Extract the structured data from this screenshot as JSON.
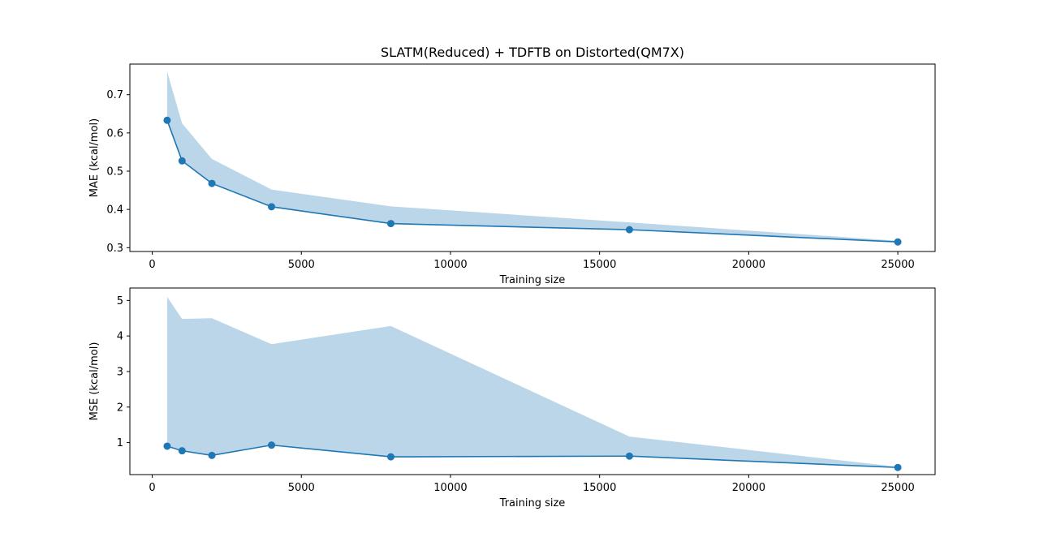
{
  "title": "SLATM(Reduced) + TDFTB on Distorted(QM7X)",
  "colors": {
    "line": "#1f77b4",
    "band": "#1f77b4",
    "axes": "#000000",
    "background": "#ffffff"
  },
  "chart_data": [
    {
      "type": "line",
      "xlabel": "Training size",
      "ylabel": "MAE (kcal/mol)",
      "xlim": [
        -750,
        26250
      ],
      "ylim": [
        0.29,
        0.78
      ],
      "xticks": [
        0,
        5000,
        10000,
        15000,
        20000,
        25000
      ],
      "yticks": [
        0.3,
        0.4,
        0.5,
        0.6,
        0.7
      ],
      "ytick_labels": [
        "0.3",
        "0.4",
        "0.5",
        "0.6",
        "0.7"
      ],
      "grid": false,
      "x": [
        500,
        1000,
        2000,
        4000,
        8000,
        16000,
        25000
      ],
      "series": [
        {
          "values": [
            0.633,
            0.527,
            0.468,
            0.407,
            0.363,
            0.347,
            0.315
          ]
        }
      ],
      "band_upper": [
        0.76,
        0.625,
        0.532,
        0.452,
        0.408,
        0.366,
        0.318
      ]
    },
    {
      "type": "line",
      "xlabel": "Training size",
      "ylabel": "MSE (kcal/mol)",
      "xlim": [
        -750,
        26250
      ],
      "ylim": [
        0.1,
        5.35
      ],
      "xticks": [
        0,
        5000,
        10000,
        15000,
        20000,
        25000
      ],
      "yticks": [
        1,
        2,
        3,
        4,
        5
      ],
      "ytick_labels": [
        "1",
        "2",
        "3",
        "4",
        "5"
      ],
      "grid": false,
      "x": [
        500,
        1000,
        2000,
        4000,
        8000,
        16000,
        25000
      ],
      "series": [
        {
          "values": [
            0.9,
            0.77,
            0.64,
            0.93,
            0.6,
            0.62,
            0.3
          ]
        }
      ],
      "band_upper": [
        5.1,
        4.48,
        4.5,
        3.77,
        4.28,
        1.17,
        0.32
      ]
    }
  ]
}
